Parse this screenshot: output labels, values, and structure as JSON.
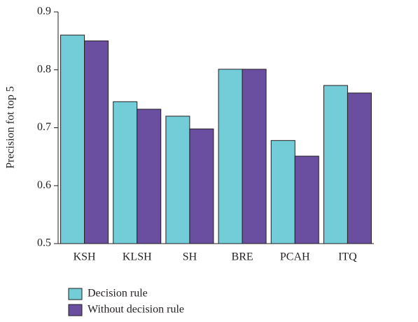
{
  "chart_data": {
    "type": "bar",
    "categories": [
      "KSH",
      "KLSH",
      "SH",
      "BRE",
      "PCAH",
      "ITQ"
    ],
    "series": [
      {
        "name": "Decision rule",
        "color": "#72cdd8",
        "values": [
          0.86,
          0.745,
          0.72,
          0.801,
          0.678,
          0.773
        ]
      },
      {
        "name": "Without decision rule",
        "color": "#6a4fa0",
        "values": [
          0.85,
          0.732,
          0.698,
          0.801,
          0.651,
          0.76
        ]
      }
    ],
    "y_label": "Precision fot top 5",
    "ylim": [
      0.5,
      0.9
    ],
    "yticks": [
      0.5,
      0.6,
      0.7,
      0.8,
      0.9
    ]
  }
}
